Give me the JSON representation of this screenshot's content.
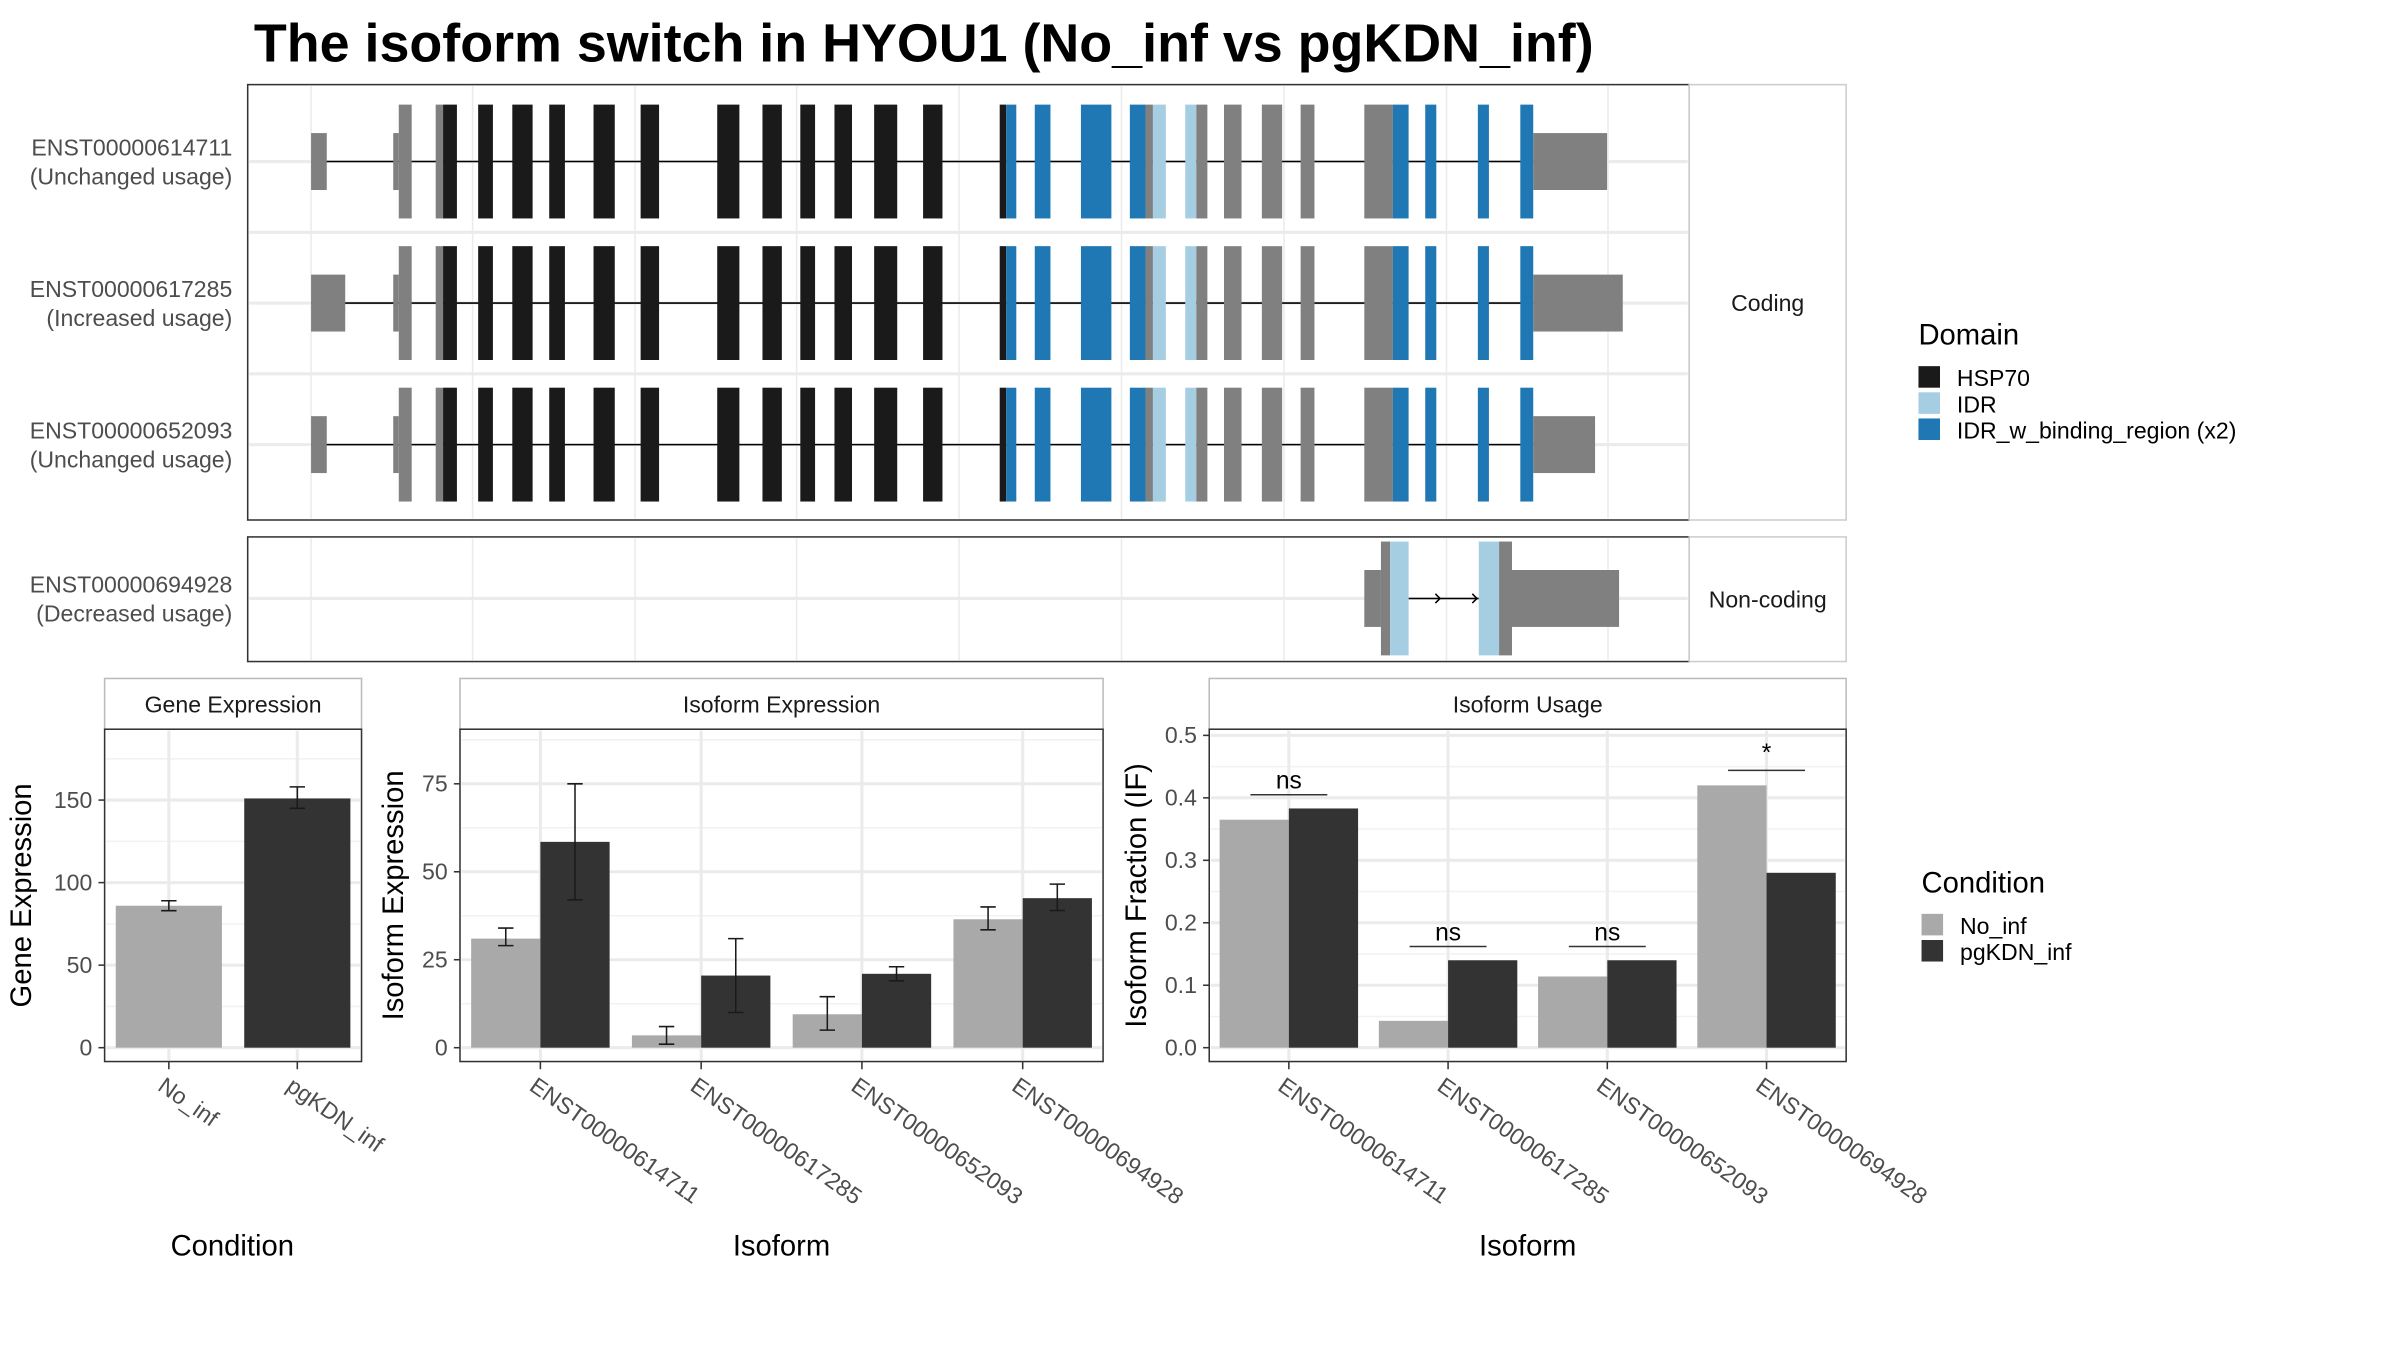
{
  "title": "The isoform switch in HYOU1 (No_inf vs pgKDN_inf)",
  "structure": {
    "coding_strip": "Coding",
    "noncoding_strip": "Non-coding",
    "transcripts": [
      {
        "id": "ENST00000614711",
        "usage": "(Unchanged usage)"
      },
      {
        "id": "ENST00000617285",
        "usage": "(Increased usage)"
      },
      {
        "id": "ENST00000652093",
        "usage": "(Unchanged usage)"
      },
      {
        "id": "ENST00000694928",
        "usage": "(Decreased usage)"
      }
    ],
    "domain_legend": {
      "title": "Domain",
      "items": [
        {
          "label": "HSP70",
          "color": "#1a1a1a"
        },
        {
          "label": "IDR",
          "color": "#a6cee3"
        },
        {
          "label": "IDR_w_binding_region (x2)",
          "color": "#1f78b4"
        }
      ]
    }
  },
  "condition_legend": {
    "title": "Condition",
    "items": [
      {
        "label": "No_inf",
        "color": "#a9a9a9"
      },
      {
        "label": "pgKDN_inf",
        "color": "#333333"
      }
    ]
  },
  "chart_data": [
    {
      "type": "bar",
      "title": "Gene Expression",
      "xlabel": "Condition",
      "ylabel": "Gene Expression",
      "ylim": [
        0,
        185
      ],
      "yticks": [
        "0",
        "50",
        "100",
        "150"
      ],
      "categories": [
        "No_inf",
        "pgKDN_inf"
      ],
      "values": [
        86,
        151
      ],
      "errors": [
        [
          83,
          89
        ],
        [
          145,
          158
        ]
      ]
    },
    {
      "type": "bar",
      "title": "Isoform Expression",
      "xlabel": "Isoform",
      "ylabel": "Isoform Expression",
      "ylim": [
        0,
        90
      ],
      "yticks": [
        "0",
        "25",
        "50",
        "75"
      ],
      "categories": [
        "ENST00000614711",
        "ENST00000617285",
        "ENST00000652093",
        "ENST00000694928"
      ],
      "series": [
        {
          "name": "No_inf",
          "values": [
            31,
            3.5,
            9.5,
            36.5
          ],
          "errors": [
            [
              29,
              34
            ],
            [
              1,
              6
            ],
            [
              5,
              14.5
            ],
            [
              33.5,
              40
            ]
          ]
        },
        {
          "name": "pgKDN_inf",
          "values": [
            58.5,
            20.5,
            21,
            42.5
          ],
          "errors": [
            [
              42,
              75
            ],
            [
              10,
              31
            ],
            [
              19,
              23
            ],
            [
              39,
              46.5
            ]
          ]
        }
      ]
    },
    {
      "type": "bar",
      "title": "Isoform Usage",
      "xlabel": "Isoform",
      "ylabel": "Isoform Fraction (IF)",
      "ylim": [
        0,
        0.5
      ],
      "yticks": [
        "0.0",
        "0.1",
        "0.2",
        "0.3",
        "0.4",
        "0.5"
      ],
      "categories": [
        "ENST00000614711",
        "ENST00000617285",
        "ENST00000652093",
        "ENST00000694928"
      ],
      "series": [
        {
          "name": "No_inf",
          "values": [
            0.365,
            0.043,
            0.114,
            0.42
          ]
        },
        {
          "name": "pgKDN_inf",
          "values": [
            0.383,
            0.14,
            0.14,
            0.28
          ]
        }
      ],
      "significance": [
        {
          "label": "ns",
          "y": 0.405
        },
        {
          "label": "ns",
          "y": 0.162
        },
        {
          "label": "ns",
          "y": 0.162
        },
        {
          "label": "*",
          "y": 0.444
        }
      ]
    }
  ]
}
